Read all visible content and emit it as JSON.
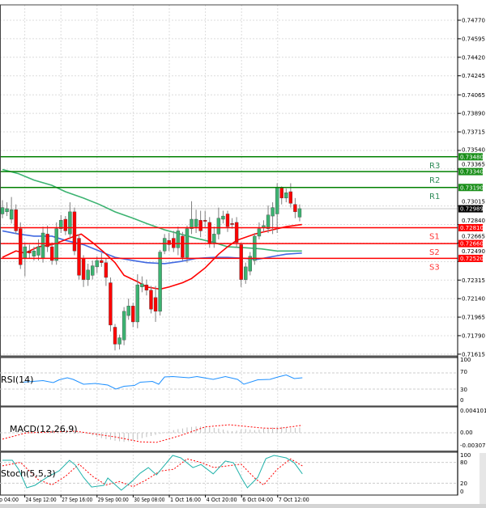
{
  "chart_data": {
    "type": "candlestick",
    "price_axis": {
      "range": [
        0.71615,
        0.7477
      ],
      "ticks": [
        "0.74770",
        "0.74595",
        "0.74420",
        "0.74245",
        "0.74065",
        "0.73890",
        "0.73715",
        "0.73540",
        "0.73365",
        "0.73015",
        "0.72840",
        "0.72665",
        "0.72490",
        "0.72315",
        "0.72140",
        "0.71965",
        "0.71790",
        "0.71615"
      ]
    },
    "time_labels": [
      "p 04:00",
      "24 Sep 12:00",
      "27 Sep 16:00",
      "29 Sep 00:00",
      "30 Sep 08:00",
      "1 Oct 16:00",
      "4 Oct 20:00",
      "6 Oct 04:00",
      "7 Oct 12:00"
    ],
    "current_price": {
      "label": "0.72989",
      "value": 0.72989,
      "color": "#000000"
    },
    "levels": [
      {
        "tag": "R3",
        "label": "0.73480",
        "value": 0.7348,
        "color": "#008000"
      },
      {
        "tag": "R2",
        "label": "0.73340",
        "value": 0.7334,
        "color": "#008000"
      },
      {
        "tag": "R1",
        "label": "0.73190",
        "value": 0.7319,
        "color": "#008000"
      },
      {
        "tag": "S1",
        "label": "0.72810",
        "value": 0.7281,
        "color": "#ff0000"
      },
      {
        "tag": "S2",
        "label": "0.72660",
        "value": 0.7266,
        "color": "#ff0000"
      },
      {
        "tag": "S3",
        "label": "0.72520",
        "value": 0.7252,
        "color": "#ff0000"
      }
    ],
    "colors": {
      "bull": "#3cb371",
      "bear": "#ff0000",
      "ma_fast": "#ff0000",
      "ma_mid": "#4169e1",
      "ma_slow": "#3cb371"
    },
    "candles_ohlc": [
      [
        0.7294,
        0.7307,
        0.729,
        0.73
      ],
      [
        0.7296,
        0.7305,
        0.7292,
        0.7299
      ],
      [
        0.7289,
        0.731,
        0.7285,
        0.7298
      ],
      [
        0.7298,
        0.7303,
        0.7275,
        0.7278
      ],
      [
        0.728,
        0.7286,
        0.7242,
        0.7246
      ],
      [
        0.7252,
        0.7267,
        0.7235,
        0.7263
      ],
      [
        0.7259,
        0.7265,
        0.7252,
        0.7257
      ],
      [
        0.7254,
        0.7263,
        0.725,
        0.7259
      ],
      [
        0.7255,
        0.727,
        0.725,
        0.7263
      ],
      [
        0.7252,
        0.7282,
        0.7248,
        0.7276
      ],
      [
        0.7275,
        0.7283,
        0.7258,
        0.7263
      ],
      [
        0.7263,
        0.7267,
        0.7246,
        0.725
      ],
      [
        0.725,
        0.7286,
        0.7246,
        0.728
      ],
      [
        0.728,
        0.7293,
        0.7276,
        0.7288
      ],
      [
        0.7289,
        0.7292,
        0.7274,
        0.7278
      ],
      [
        0.7275,
        0.7305,
        0.727,
        0.7296
      ],
      [
        0.7296,
        0.73,
        0.7255,
        0.7259
      ],
      [
        0.7271,
        0.7275,
        0.7232,
        0.7236
      ],
      [
        0.7252,
        0.7255,
        0.7225,
        0.7232
      ],
      [
        0.7232,
        0.7247,
        0.7226,
        0.7241
      ],
      [
        0.7236,
        0.725,
        0.7232,
        0.7245
      ],
      [
        0.7244,
        0.7254,
        0.7238,
        0.725
      ],
      [
        0.725,
        0.7257,
        0.7244,
        0.7248
      ],
      [
        0.7248,
        0.7252,
        0.7226,
        0.7234
      ],
      [
        0.7229,
        0.7234,
        0.7183,
        0.7189
      ],
      [
        0.7187,
        0.719,
        0.7165,
        0.7171
      ],
      [
        0.7171,
        0.718,
        0.7166,
        0.7177
      ],
      [
        0.7175,
        0.7206,
        0.717,
        0.7202
      ],
      [
        0.7198,
        0.7214,
        0.7194,
        0.7207
      ],
      [
        0.7207,
        0.721,
        0.7187,
        0.7192
      ],
      [
        0.7192,
        0.7237,
        0.7186,
        0.7227
      ],
      [
        0.7225,
        0.7235,
        0.722,
        0.7228
      ],
      [
        0.7227,
        0.7232,
        0.7217,
        0.7222
      ],
      [
        0.7222,
        0.7226,
        0.72,
        0.7204
      ],
      [
        0.7215,
        0.7226,
        0.7192,
        0.7202
      ],
      [
        0.7202,
        0.726,
        0.7198,
        0.7258
      ],
      [
        0.7259,
        0.7275,
        0.7256,
        0.7271
      ],
      [
        0.7269,
        0.7276,
        0.7259,
        0.7265
      ],
      [
        0.7271,
        0.7278,
        0.7258,
        0.7262
      ],
      [
        0.7262,
        0.7282,
        0.7255,
        0.7278
      ],
      [
        0.7273,
        0.7277,
        0.725,
        0.7253
      ],
      [
        0.7253,
        0.7283,
        0.7248,
        0.728
      ],
      [
        0.728,
        0.7306,
        0.7275,
        0.7289
      ],
      [
        0.7282,
        0.7298,
        0.7276,
        0.7289
      ],
      [
        0.7288,
        0.7297,
        0.7272,
        0.7278
      ],
      [
        0.7288,
        0.7297,
        0.7281,
        0.7287
      ],
      [
        0.7286,
        0.7291,
        0.7262,
        0.7266
      ],
      [
        0.7267,
        0.7282,
        0.7262,
        0.7275
      ],
      [
        0.7275,
        0.73,
        0.727,
        0.729
      ],
      [
        0.7289,
        0.7297,
        0.7285,
        0.7292
      ],
      [
        0.7294,
        0.7297,
        0.7277,
        0.7282
      ],
      [
        0.7285,
        0.729,
        0.728,
        0.7284
      ],
      [
        0.7286,
        0.7291,
        0.7262,
        0.7267
      ],
      [
        0.7265,
        0.7267,
        0.7225,
        0.7232
      ],
      [
        0.7232,
        0.7248,
        0.7228,
        0.7244
      ],
      [
        0.724,
        0.7258,
        0.7236,
        0.7254
      ],
      [
        0.725,
        0.7276,
        0.7246,
        0.7273
      ],
      [
        0.7273,
        0.7286,
        0.727,
        0.728
      ],
      [
        0.7281,
        0.7288,
        0.7277,
        0.7283
      ],
      [
        0.728,
        0.7302,
        0.7276,
        0.7293
      ],
      [
        0.7292,
        0.7305,
        0.7275,
        0.73
      ],
      [
        0.7294,
        0.7323,
        0.7276,
        0.7319
      ],
      [
        0.7319,
        0.732,
        0.7303,
        0.7309
      ],
      [
        0.7309,
        0.7318,
        0.7305,
        0.7314
      ],
      [
        0.7315,
        0.7323,
        0.73,
        0.7304
      ],
      [
        0.7303,
        0.7309,
        0.729,
        0.7296
      ],
      [
        0.7291,
        0.7303,
        0.7287,
        0.7299
      ]
    ],
    "moving_averages": {
      "fast": [
        [
          0,
          0.7253
        ],
        [
          3,
          0.7259
        ],
        [
          5,
          0.7257
        ],
        [
          8,
          0.7263
        ],
        [
          11,
          0.7265
        ],
        [
          13,
          0.7268
        ],
        [
          16,
          0.7273
        ],
        [
          17.5,
          0.7275
        ],
        [
          20,
          0.7267
        ],
        [
          22.5,
          0.7258
        ],
        [
          25,
          0.7248
        ],
        [
          27,
          0.7236
        ],
        [
          30,
          0.723
        ],
        [
          32,
          0.7225
        ],
        [
          35,
          0.7223
        ],
        [
          37,
          0.7225
        ],
        [
          40,
          0.7229
        ],
        [
          42,
          0.7233
        ],
        [
          45,
          0.7243
        ],
        [
          48,
          0.7256
        ],
        [
          50,
          0.7263
        ],
        [
          52,
          0.7269
        ],
        [
          56,
          0.7275
        ],
        [
          59,
          0.7278
        ],
        [
          63,
          0.7282
        ],
        [
          66.5,
          0.7284
        ]
      ],
      "mid": [
        [
          0,
          0.7278
        ],
        [
          3.6,
          0.7275
        ],
        [
          7,
          0.7273
        ],
        [
          11,
          0.7273
        ],
        [
          14,
          0.7269
        ],
        [
          18,
          0.7265
        ],
        [
          21.5,
          0.7259
        ],
        [
          25,
          0.7253
        ],
        [
          29,
          0.725
        ],
        [
          32,
          0.7248
        ],
        [
          36,
          0.7247
        ],
        [
          39.5,
          0.7249
        ],
        [
          43,
          0.7252
        ],
        [
          47,
          0.7253
        ],
        [
          50,
          0.7253
        ],
        [
          54,
          0.7252
        ],
        [
          56.5,
          0.7251
        ],
        [
          59,
          0.7253
        ],
        [
          63,
          0.7256
        ],
        [
          66.5,
          0.7257
        ]
      ],
      "slow": [
        [
          0,
          0.7336
        ],
        [
          3.6,
          0.7332
        ],
        [
          7,
          0.7326
        ],
        [
          11,
          0.7321
        ],
        [
          14,
          0.7315
        ],
        [
          18,
          0.7309
        ],
        [
          21.5,
          0.7303
        ],
        [
          25,
          0.7296
        ],
        [
          29,
          0.729
        ],
        [
          32,
          0.7285
        ],
        [
          36,
          0.7279
        ],
        [
          39.5,
          0.7275
        ],
        [
          43,
          0.7271
        ],
        [
          47,
          0.7267
        ],
        [
          50,
          0.7263
        ],
        [
          54,
          0.7262
        ],
        [
          57.5,
          0.7261
        ],
        [
          61,
          0.7259
        ],
        [
          66.5,
          0.7259
        ]
      ]
    },
    "rsi": {
      "title": "RSI(14)",
      "ticks": [
        "100",
        "70",
        "30",
        "0"
      ],
      "range": [
        0,
        100
      ],
      "color": "#1e90ff",
      "values": [
        [
          4.5,
          47
        ],
        [
          9,
          51
        ],
        [
          11.3,
          46
        ],
        [
          12.6,
          53
        ],
        [
          14.4,
          58
        ],
        [
          15.7,
          54
        ],
        [
          18,
          42
        ],
        [
          20.7,
          44
        ],
        [
          23.4,
          40
        ],
        [
          25.2,
          30
        ],
        [
          27,
          37
        ],
        [
          29.3,
          39
        ],
        [
          30.6,
          47
        ],
        [
          33.3,
          49
        ],
        [
          34.7,
          42
        ],
        [
          36,
          60
        ],
        [
          37.8,
          61
        ],
        [
          41.4,
          58
        ],
        [
          43.2,
          61
        ],
        [
          46.8,
          54
        ],
        [
          49.5,
          61
        ],
        [
          52.2,
          54
        ],
        [
          53.6,
          42
        ],
        [
          56.7,
          53
        ],
        [
          59.4,
          54
        ],
        [
          61.2,
          60
        ],
        [
          63,
          65
        ],
        [
          64.8,
          56
        ],
        [
          66.6,
          58
        ]
      ]
    },
    "macd": {
      "title": "MACD(12,26,9)",
      "ticks": [
        "0.004101",
        "0.00",
        "-0.00307"
      ],
      "range": [
        -0.00307,
        0.004101
      ],
      "signal": [
        [
          0,
          -0.0012
        ],
        [
          5.4,
          0
        ],
        [
          16.2,
          0.0003
        ],
        [
          25.2,
          -0.0008
        ],
        [
          30.6,
          -0.0017
        ],
        [
          34.2,
          -0.0018
        ],
        [
          39.6,
          -0.0005
        ],
        [
          45,
          0.0011
        ],
        [
          50.4,
          0.0015
        ],
        [
          57.6,
          0.0009
        ],
        [
          61.2,
          0.0008
        ],
        [
          66.6,
          0.0014
        ]
      ],
      "histogram_start": 19,
      "histogram": [
        -0.0002,
        -0.0005,
        -0.0008,
        -0.001,
        -0.0012,
        -0.0013,
        -0.0015,
        -0.0016,
        -0.0017,
        -0.0016,
        -0.0015,
        -0.0013,
        -0.001,
        -0.0008,
        -0.0006,
        -0.0004,
        -0.0002,
        0.0001,
        0.0003,
        0.0005,
        0.0007,
        0.0008,
        0.001,
        0.0011,
        0.0012,
        0.0012,
        0.0011,
        0.001,
        0.0009,
        0.0008,
        0.0006,
        0.0004,
        0.0003,
        0.0004,
        0.0006,
        0.0007,
        0.0006,
        0.0005,
        0.0006,
        0.0008,
        0.0009,
        0.001,
        0.0011,
        0.0011,
        0.001,
        0.0009,
        0.0009,
        0.001
      ]
    },
    "stoch": {
      "title": "Stoch(5,5,3)",
      "ticks": [
        "100",
        "80",
        "20",
        "0"
      ],
      "range": [
        0,
        100
      ],
      "main": [
        [
          0,
          86
        ],
        [
          2.2,
          86
        ],
        [
          3.6,
          60
        ],
        [
          5.4,
          7
        ],
        [
          7.2,
          14
        ],
        [
          9.9,
          37
        ],
        [
          12.6,
          56
        ],
        [
          14.9,
          86
        ],
        [
          16.2,
          72
        ],
        [
          18,
          37
        ],
        [
          19.8,
          9
        ],
        [
          22.5,
          14
        ],
        [
          23.4,
          35
        ],
        [
          25.2,
          14
        ],
        [
          26.4,
          0
        ],
        [
          28.8,
          26
        ],
        [
          30.6,
          49
        ],
        [
          32.4,
          65
        ],
        [
          34.2,
          44
        ],
        [
          36,
          72
        ],
        [
          37.8,
          100
        ],
        [
          39.6,
          93
        ],
        [
          42.3,
          65
        ],
        [
          44.1,
          74
        ],
        [
          46.8,
          47
        ],
        [
          49.5,
          84
        ],
        [
          51.3,
          79
        ],
        [
          53.1,
          35
        ],
        [
          54.4,
          7
        ],
        [
          56.7,
          37
        ],
        [
          58.5,
          91
        ],
        [
          60.3,
          100
        ],
        [
          63,
          93
        ],
        [
          64.8,
          79
        ],
        [
          66.6,
          47
        ]
      ],
      "signal": [
        [
          0,
          70
        ],
        [
          4,
          80
        ],
        [
          8,
          30
        ],
        [
          11,
          15
        ],
        [
          14,
          40
        ],
        [
          17,
          75
        ],
        [
          20,
          40
        ],
        [
          23,
          15
        ],
        [
          26,
          25
        ],
        [
          29,
          10
        ],
        [
          32,
          30
        ],
        [
          35,
          55
        ],
        [
          38,
          60
        ],
        [
          41,
          90
        ],
        [
          44,
          80
        ],
        [
          47,
          65
        ],
        [
          50,
          70
        ],
        [
          53,
          75
        ],
        [
          56,
          35
        ],
        [
          58,
          15
        ],
        [
          61,
          60
        ],
        [
          64,
          90
        ],
        [
          66.6,
          70
        ]
      ],
      "main_color": "#20b2aa",
      "signal_color": "#ff0000"
    }
  }
}
